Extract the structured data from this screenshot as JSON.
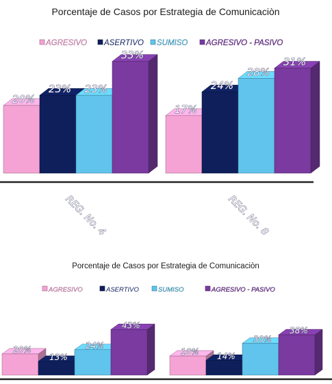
{
  "colors": {
    "agresivo": "#f5a3d4",
    "asertivo": "#0e1f5c",
    "sumiso": "#60c4ec",
    "agresivo_pasivo": "#7a3aa0"
  },
  "chart_data": [
    {
      "type": "bar",
      "title": "Porcentaje de Casos por Estrategia de Comunicaciòn",
      "legend_position": "top",
      "grid": false,
      "categories": [
        "REG. No. 4",
        "REG. No. 8"
      ],
      "ylim": [
        0,
        40
      ],
      "series": [
        {
          "name": "AGRESIVO",
          "values": [
            20,
            17
          ]
        },
        {
          "name": "ASERTIVO",
          "values": [
            23,
            24
          ]
        },
        {
          "name": "SUMISO",
          "values": [
            23,
            28
          ]
        },
        {
          "name": "AGRESIVO - PASIVO",
          "values": [
            33,
            31
          ]
        }
      ],
      "value_labels": [
        [
          "20%",
          "17%"
        ],
        [
          "23%",
          "24%"
        ],
        [
          "23%",
          "28%"
        ],
        [
          "33%",
          "31%"
        ]
      ]
    },
    {
      "type": "bar",
      "title": "Porcentaje de Casos por Estrategia de Comunicaciòn",
      "legend_position": "top",
      "grid": false,
      "categories": [
        "",
        ""
      ],
      "ylim": [
        0,
        55
      ],
      "series": [
        {
          "name": "AGRESIVO",
          "values": [
            20,
            18
          ]
        },
        {
          "name": "ASERTIVO",
          "values": [
            13,
            14
          ]
        },
        {
          "name": "SUMISO",
          "values": [
            24,
            30
          ]
        },
        {
          "name": "AGRESIVO - PASIVO",
          "values": [
            43,
            38
          ]
        }
      ],
      "value_labels": [
        [
          "20%",
          "18%"
        ],
        [
          "13%",
          "14%"
        ],
        [
          "24%",
          "30%"
        ],
        [
          "43%",
          "38%"
        ]
      ]
    }
  ]
}
